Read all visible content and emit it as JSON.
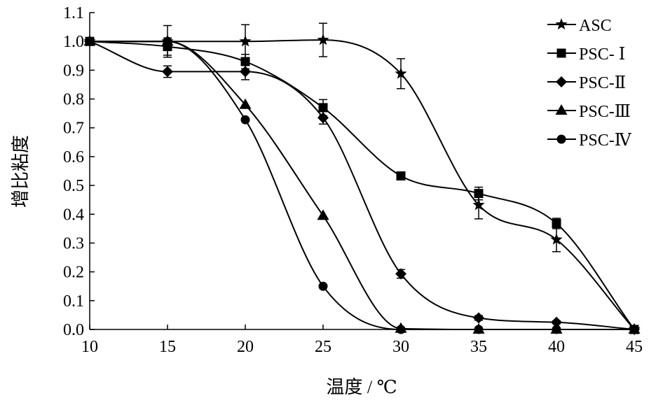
{
  "chart_data": {
    "type": "line",
    "xlabel": "温度 / ℃",
    "ylabel": "增比粘度",
    "xlim": [
      10,
      45
    ],
    "ylim": [
      0.0,
      1.1
    ],
    "x_ticks": [
      10,
      15,
      20,
      25,
      30,
      35,
      40,
      45
    ],
    "x_tick_labels": [
      "10",
      "15",
      "20",
      "25",
      "30",
      "35",
      "40",
      "45"
    ],
    "y_ticks": [
      0.0,
      0.1,
      0.2,
      0.3,
      0.4,
      0.5,
      0.6,
      0.7,
      0.8,
      0.9,
      1.0,
      1.1
    ],
    "y_tick_labels": [
      "0.0",
      "0.1",
      "0.2",
      "0.3",
      "0.4",
      "0.5",
      "0.6",
      "0.7",
      "0.8",
      "0.9",
      "1.0",
      "1.1"
    ],
    "grid": false,
    "legend_position": "top-right",
    "x": [
      10,
      15,
      20,
      25,
      30,
      35,
      40,
      45
    ],
    "series": [
      {
        "name": "ASC",
        "marker": "star",
        "values": [
          1.0,
          1.0,
          1.0,
          1.005,
          0.888,
          0.432,
          0.312,
          0.0
        ],
        "errors": [
          0.0,
          0.055,
          0.058,
          0.058,
          0.052,
          0.048,
          0.042,
          0.0
        ]
      },
      {
        "name": "PSC- Ⅰ",
        "marker": "square",
        "values": [
          1.0,
          0.982,
          0.93,
          0.77,
          0.533,
          0.472,
          0.368,
          0.0
        ],
        "errors": [
          0.0,
          0.03,
          0.025,
          0.028,
          0.0,
          0.022,
          0.018,
          0.0
        ]
      },
      {
        "name": "PSC-Ⅱ",
        "marker": "diamond",
        "values": [
          1.0,
          0.895,
          0.895,
          0.735,
          0.193,
          0.04,
          0.025,
          0.0
        ],
        "errors": [
          0.0,
          0.02,
          0.028,
          0.022,
          0.015,
          0.008,
          0.005,
          0.0
        ]
      },
      {
        "name": "PSC-Ⅲ",
        "marker": "triangle",
        "values": [
          1.0,
          1.0,
          0.78,
          0.395,
          0.003,
          0.0,
          0.0,
          0.0
        ],
        "errors": [
          0.0,
          0.0,
          0.0,
          0.0,
          0.0,
          0.0,
          0.0,
          0.0
        ]
      },
      {
        "name": "PSC-Ⅳ",
        "marker": "circle",
        "values": [
          1.0,
          1.0,
          0.728,
          0.15,
          0.0,
          0.0,
          0.0,
          0.0
        ],
        "errors": [
          0.0,
          0.0,
          0.0,
          0.0,
          0.0,
          0.0,
          0.0,
          0.0
        ]
      }
    ]
  }
}
